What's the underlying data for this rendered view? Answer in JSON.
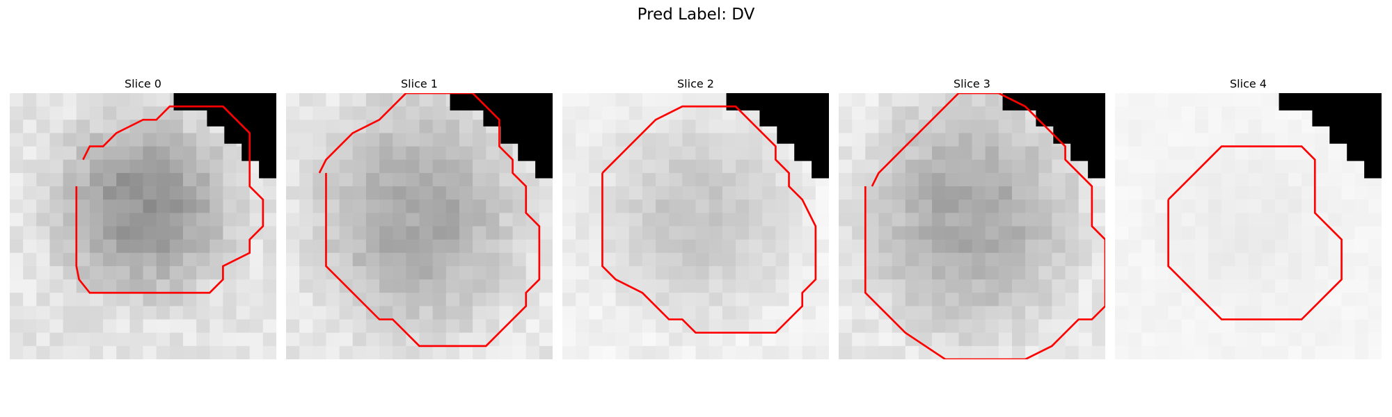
{
  "figure": {
    "title": "Pred Label: DV"
  },
  "colors": {
    "contour": "#ff0000",
    "mask": "#000000"
  },
  "panels": [
    {
      "title": "Slice 0",
      "tone": "dark-blob",
      "contour": [
        [
          5.5,
          5
        ],
        [
          6,
          4
        ],
        [
          7,
          4
        ],
        [
          8,
          3
        ],
        [
          10,
          2
        ],
        [
          11,
          2
        ],
        [
          12,
          1
        ],
        [
          14,
          1
        ],
        [
          16,
          1
        ],
        [
          17,
          2
        ],
        [
          18,
          3
        ],
        [
          18,
          5
        ],
        [
          18,
          7
        ],
        [
          19,
          8
        ],
        [
          19,
          10
        ],
        [
          18,
          11
        ],
        [
          18,
          12
        ],
        [
          16,
          13
        ],
        [
          16,
          14
        ],
        [
          15,
          15
        ],
        [
          14,
          15
        ],
        [
          10,
          15
        ],
        [
          9,
          15
        ],
        [
          8,
          15
        ],
        [
          6,
          15
        ],
        [
          5.2,
          14
        ],
        [
          5,
          13
        ],
        [
          5,
          7
        ]
      ]
    },
    {
      "title": "Slice 1",
      "tone": "medium-blob",
      "contour": [
        [
          2.5,
          6
        ],
        [
          3,
          5
        ],
        [
          4,
          4
        ],
        [
          5,
          3
        ],
        [
          7,
          2
        ],
        [
          8,
          1
        ],
        [
          9,
          0
        ],
        [
          12,
          0
        ],
        [
          14,
          0
        ],
        [
          15,
          1
        ],
        [
          16,
          2
        ],
        [
          16,
          4
        ],
        [
          17,
          5
        ],
        [
          17,
          6
        ],
        [
          18,
          7
        ],
        [
          18,
          9
        ],
        [
          19,
          10
        ],
        [
          19,
          12
        ],
        [
          19,
          14
        ],
        [
          18,
          15
        ],
        [
          18,
          16
        ],
        [
          17,
          17
        ],
        [
          16,
          18
        ],
        [
          15,
          19
        ],
        [
          12,
          19
        ],
        [
          11,
          19
        ],
        [
          10,
          19
        ],
        [
          9,
          18
        ],
        [
          8,
          17
        ],
        [
          7,
          17
        ],
        [
          5,
          15
        ],
        [
          4,
          14
        ],
        [
          3,
          13
        ],
        [
          3,
          11
        ],
        [
          3,
          6
        ]
      ]
    },
    {
      "title": "Slice 2",
      "tone": "light-blob",
      "contour": [
        [
          3,
          6
        ],
        [
          4,
          5
        ],
        [
          5,
          4
        ],
        [
          6,
          3
        ],
        [
          7,
          2
        ],
        [
          9,
          1
        ],
        [
          12,
          1
        ],
        [
          13,
          1
        ],
        [
          14,
          2
        ],
        [
          15,
          3
        ],
        [
          16,
          4
        ],
        [
          16,
          5
        ],
        [
          17,
          6
        ],
        [
          17,
          7
        ],
        [
          18,
          8
        ],
        [
          19,
          10
        ],
        [
          19,
          12
        ],
        [
          19,
          14
        ],
        [
          18,
          15
        ],
        [
          18,
          16
        ],
        [
          17,
          17
        ],
        [
          16,
          18
        ],
        [
          12,
          18
        ],
        [
          11,
          18
        ],
        [
          10,
          18
        ],
        [
          9,
          17
        ],
        [
          8,
          17
        ],
        [
          6,
          15
        ],
        [
          4,
          14
        ],
        [
          3,
          13
        ],
        [
          3,
          11
        ],
        [
          3,
          6
        ]
      ]
    },
    {
      "title": "Slice 3",
      "tone": "medium-blob",
      "contour": [
        [
          2.5,
          7
        ],
        [
          3,
          6
        ],
        [
          4,
          5
        ],
        [
          5,
          4
        ],
        [
          6,
          3
        ],
        [
          7,
          2
        ],
        [
          8,
          1
        ],
        [
          9,
          0
        ],
        [
          12,
          0
        ],
        [
          14,
          1
        ],
        [
          15,
          2
        ],
        [
          16,
          3
        ],
        [
          17,
          4
        ],
        [
          17,
          5
        ],
        [
          18,
          6
        ],
        [
          19,
          7
        ],
        [
          19,
          10
        ],
        [
          20,
          11
        ],
        [
          20,
          13
        ],
        [
          20,
          16
        ],
        [
          19,
          17
        ],
        [
          18,
          17
        ],
        [
          17,
          18
        ],
        [
          16,
          19
        ],
        [
          14,
          20
        ],
        [
          12,
          20
        ],
        [
          11,
          20
        ],
        [
          10,
          20
        ],
        [
          8,
          20
        ],
        [
          5,
          18
        ],
        [
          3,
          16
        ],
        [
          2,
          15
        ],
        [
          2,
          13
        ],
        [
          2,
          7
        ]
      ]
    },
    {
      "title": "Slice 4",
      "tone": "very-light",
      "contour": [
        [
          4,
          8
        ],
        [
          5,
          7
        ],
        [
          6,
          6
        ],
        [
          7,
          5
        ],
        [
          8,
          4
        ],
        [
          10,
          4
        ],
        [
          11,
          4
        ],
        [
          12,
          4
        ],
        [
          14,
          4
        ],
        [
          15,
          5
        ],
        [
          15,
          7
        ],
        [
          15,
          9
        ],
        [
          16,
          10
        ],
        [
          17,
          11
        ],
        [
          17,
          13
        ],
        [
          17,
          14
        ],
        [
          16,
          15
        ],
        [
          15,
          16
        ],
        [
          14,
          17
        ],
        [
          12,
          17
        ],
        [
          11,
          17
        ],
        [
          10,
          17
        ],
        [
          8,
          17
        ],
        [
          7,
          16
        ],
        [
          6,
          15
        ],
        [
          5,
          14
        ],
        [
          4,
          13
        ],
        [
          4,
          11
        ],
        [
          4,
          8
        ]
      ]
    }
  ]
}
